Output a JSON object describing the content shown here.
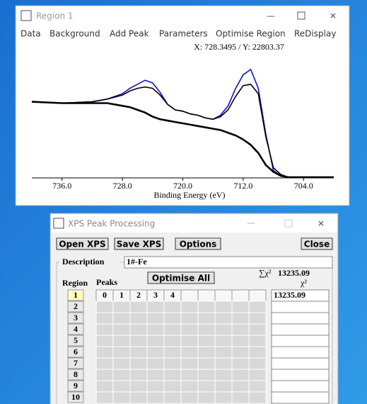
{
  "window1": {
    "title": "Region 1",
    "menu": [
      "Data",
      "Background",
      "Add Peak",
      "Parameters",
      "Optimise Region",
      "ReDisplay"
    ],
    "cursor_readout": "X: 728.3495 / Y: 22803.37"
  },
  "chart_data": {
    "type": "line",
    "x_label": "Binding Energy (eV)",
    "x": [
      740,
      736,
      732,
      730,
      728,
      727,
      726,
      725,
      724,
      723,
      722,
      721,
      720,
      719,
      718,
      717,
      716,
      715,
      714,
      713,
      712,
      711,
      710,
      709,
      708,
      707,
      706,
      704,
      700
    ],
    "xlim": [
      740,
      700
    ],
    "xticks": [
      {
        "value": 736,
        "label": "736.0"
      },
      {
        "value": 728,
        "label": "728.0"
      },
      {
        "value": 720,
        "label": "720.0"
      },
      {
        "value": 712,
        "label": "712.0"
      },
      {
        "value": 704,
        "label": "704.0"
      }
    ],
    "ylim": [
      0,
      100
    ],
    "series": [
      {
        "color": "#1010d0",
        "values": [
          56,
          55,
          56,
          58,
          62,
          66,
          69,
          72,
          70,
          63,
          54,
          50,
          49,
          47,
          46,
          44,
          43,
          46,
          53,
          66,
          76,
          80,
          66,
          32,
          5,
          1,
          0,
          0,
          0
        ]
      },
      {
        "color": "#000000",
        "values": [
          56,
          55,
          56,
          58,
          61,
          64,
          66,
          67,
          66,
          61,
          54,
          50,
          49,
          47,
          46,
          44,
          43,
          45,
          50,
          60,
          68,
          69,
          62,
          30,
          7,
          2,
          0,
          0,
          0
        ]
      },
      {
        "color": "#000000",
        "values": [
          56,
          55,
          55,
          55,
          53,
          52,
          50,
          48,
          45,
          43,
          42,
          41,
          40,
          39,
          38,
          37,
          36,
          35,
          33,
          31,
          28,
          24,
          18,
          9,
          4,
          1,
          0,
          0,
          0
        ]
      }
    ]
  },
  "window2": {
    "title": "XPS Peak Processing",
    "buttons": [
      "Open XPS",
      "Save XPS",
      "Options",
      "Close"
    ],
    "description_label": "Description",
    "description": "1#-Fe",
    "optimise_all": "Optimise All",
    "chi_sum_label": "∑χ²",
    "chi_sum_value": "13235.09",
    "chi_label": "χ²",
    "region_label": "Region",
    "peaks_label": "Peaks",
    "regions": [
      "1",
      "2",
      "3",
      "4",
      "5",
      "6",
      "7",
      "8",
      "9",
      "10"
    ],
    "peak_columns": [
      "0",
      "1",
      "2",
      "3",
      "4"
    ],
    "chi_values": [
      "13235.09"
    ]
  }
}
